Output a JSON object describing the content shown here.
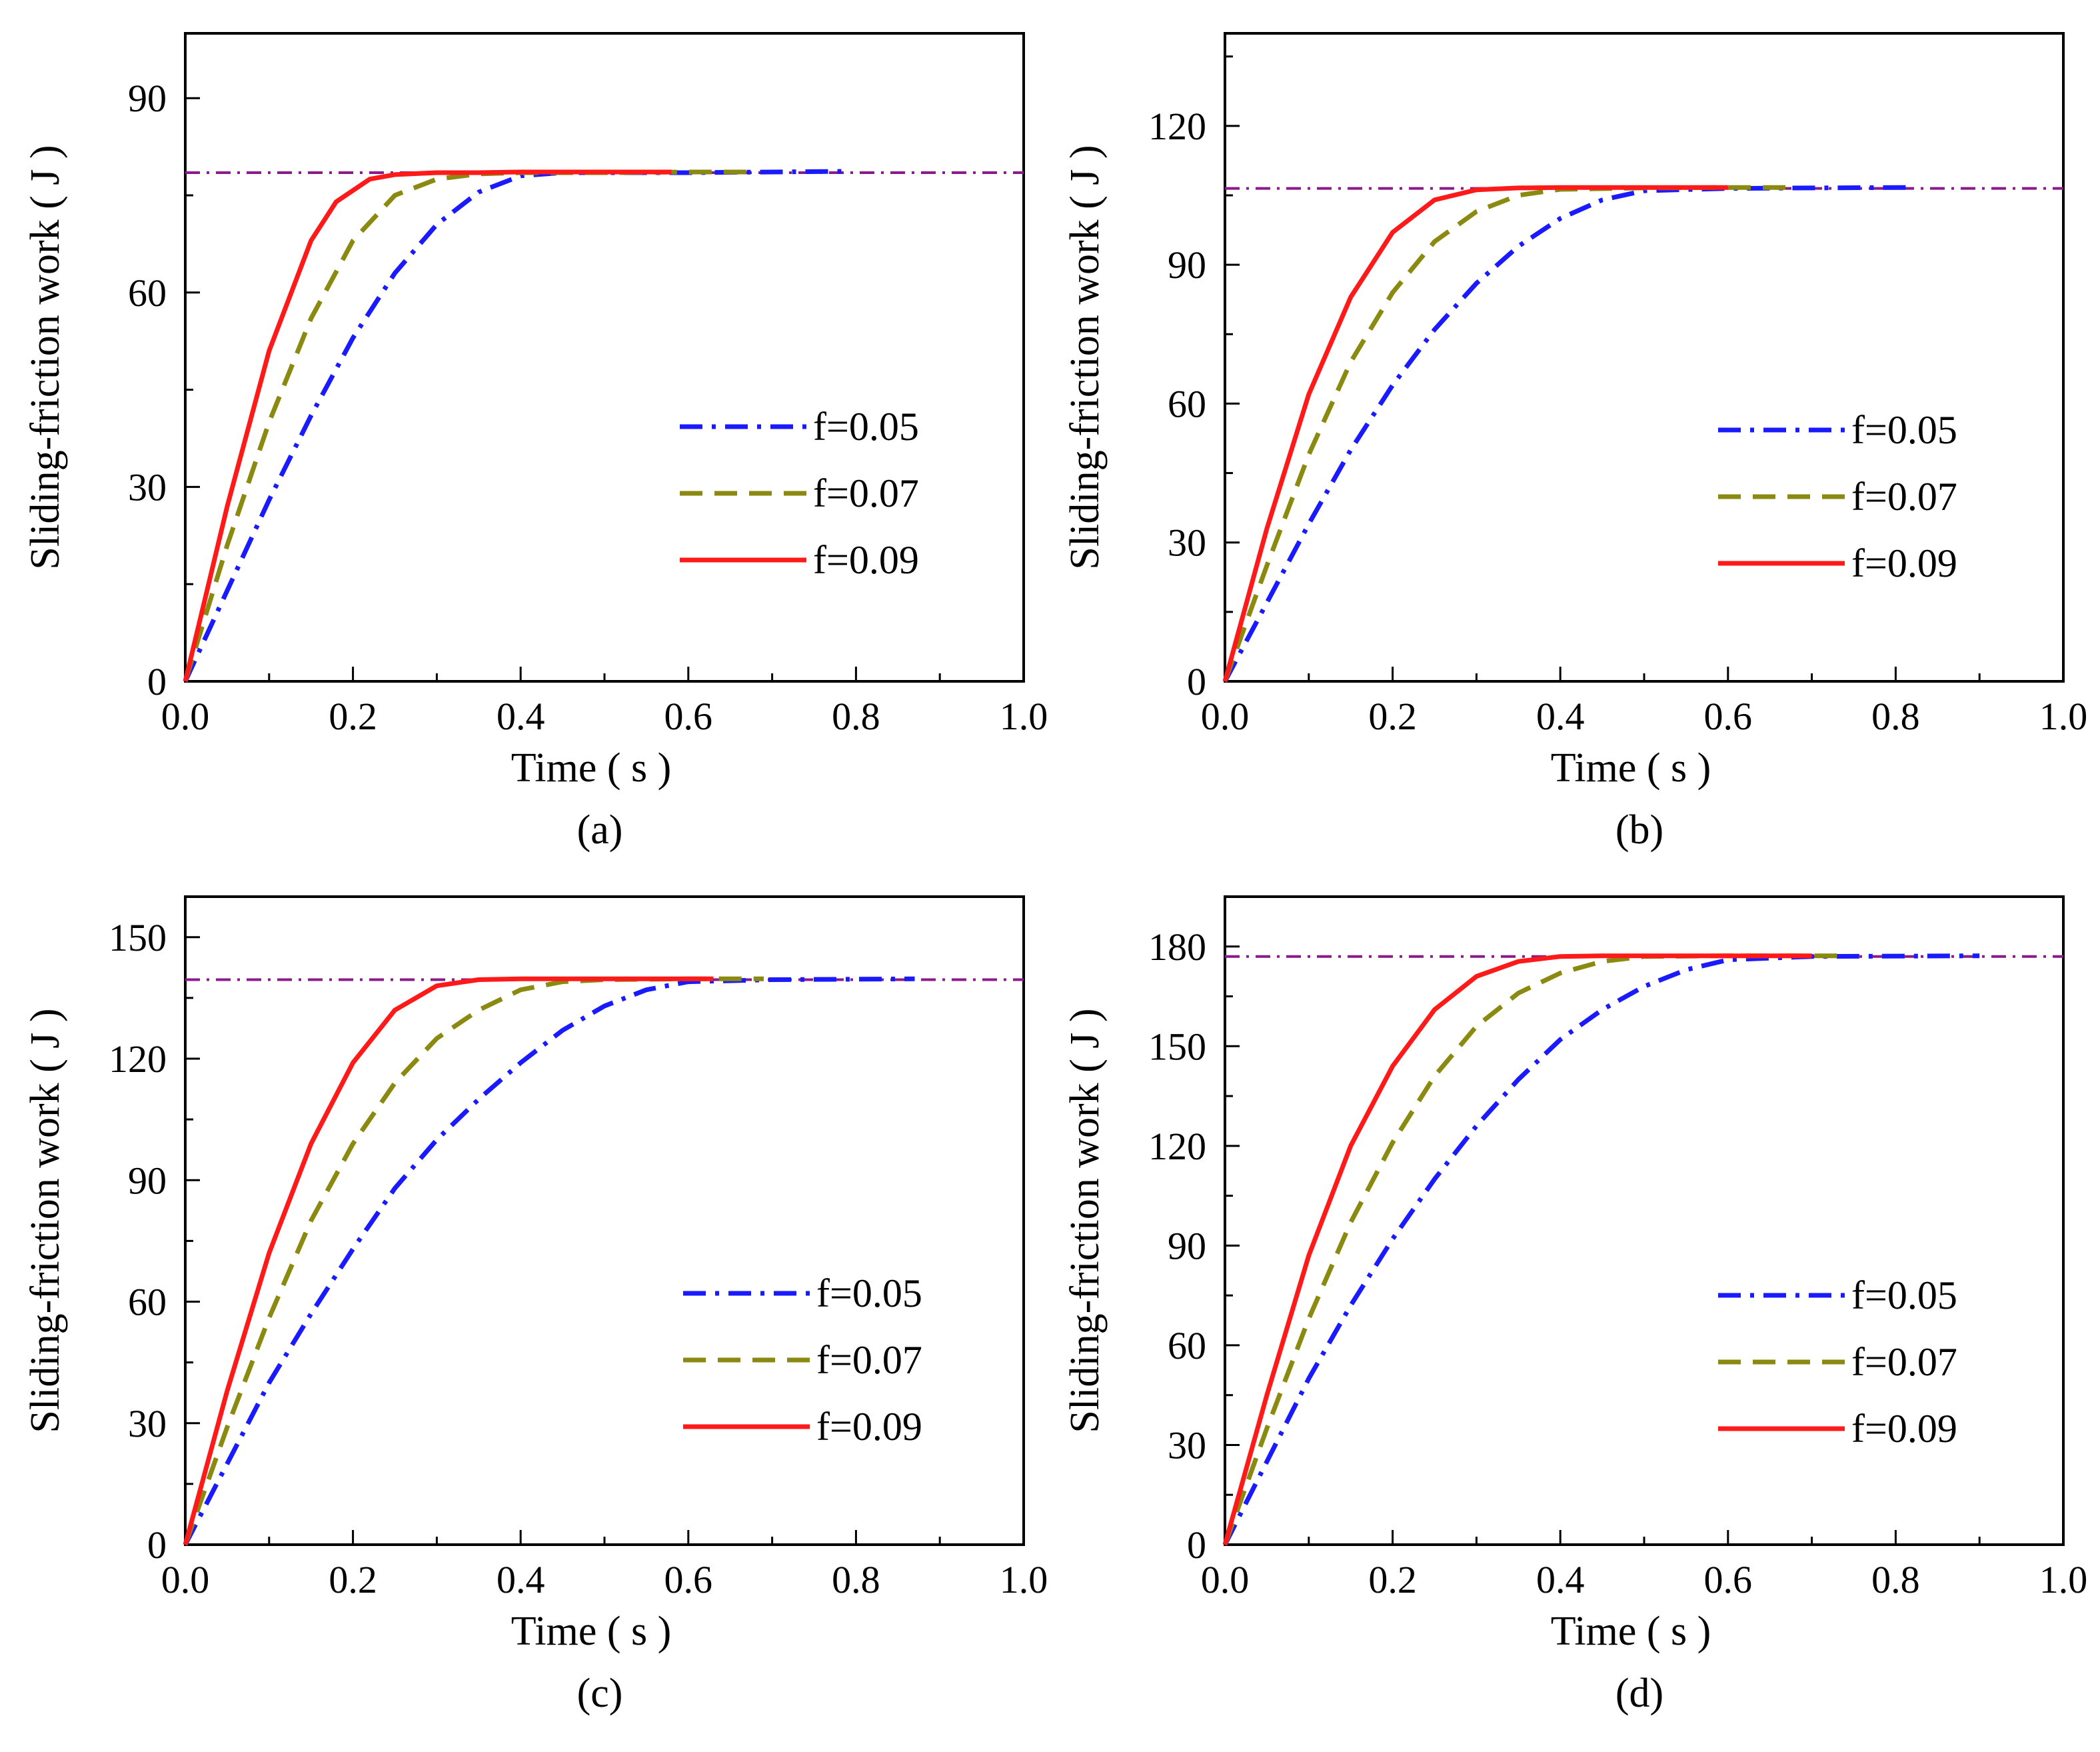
{
  "chart_data": [
    {
      "type": "line",
      "panel_label": "(a)",
      "xlabel": "Time ( s )",
      "ylabel": "Sliding-friction work ( J )",
      "xlim": [
        0,
        1.0
      ],
      "ylim": [
        0,
        100
      ],
      "xticks": [
        "0.0",
        "0.2",
        "0.4",
        "0.6",
        "0.8",
        "1.0"
      ],
      "yticks": [
        "0",
        "30",
        "60",
        "90"
      ],
      "reference_line": 78.5,
      "legend": [
        "f=0.05",
        "f=0.07",
        "f=0.09"
      ],
      "series": [
        {
          "name": "f=0.05",
          "x": [
            0,
            0.05,
            0.1,
            0.15,
            0.2,
            0.25,
            0.3,
            0.35,
            0.4,
            0.45,
            0.5,
            0.6,
            0.7,
            0.79
          ],
          "y": [
            0,
            14,
            28,
            41,
            53,
            63,
            70.5,
            75.5,
            78,
            78.5,
            78.5,
            78.5,
            78.6,
            78.7
          ]
        },
        {
          "name": "f=0.07",
          "x": [
            0,
            0.05,
            0.1,
            0.15,
            0.2,
            0.25,
            0.3,
            0.35,
            0.4,
            0.5,
            0.6,
            0.67
          ],
          "y": [
            0,
            21,
            40,
            56,
            68,
            75,
            77.5,
            78.3,
            78.5,
            78.5,
            78.6,
            78.6
          ]
        },
        {
          "name": "f=0.09",
          "x": [
            0,
            0.05,
            0.1,
            0.15,
            0.18,
            0.22,
            0.25,
            0.3,
            0.35,
            0.4,
            0.5,
            0.58
          ],
          "y": [
            0,
            27,
            51,
            68,
            74,
            77.5,
            78.2,
            78.5,
            78.5,
            78.6,
            78.6,
            78.6
          ]
        }
      ]
    },
    {
      "type": "line",
      "panel_label": "(b)",
      "xlabel": "Time ( s )",
      "ylabel": "Sliding-friction work ( J )",
      "xlim": [
        0,
        1.0
      ],
      "ylim": [
        0,
        140
      ],
      "xticks": [
        "0.0",
        "0.2",
        "0.4",
        "0.6",
        "0.8",
        "1.0"
      ],
      "yticks": [
        "0",
        "30",
        "60",
        "90",
        "120"
      ],
      "reference_line": 106.5,
      "legend": [
        "f=0.05",
        "f=0.07",
        "f=0.09"
      ],
      "series": [
        {
          "name": "f=0.05",
          "x": [
            0,
            0.05,
            0.1,
            0.15,
            0.2,
            0.25,
            0.3,
            0.35,
            0.4,
            0.45,
            0.5,
            0.6,
            0.7,
            0.82
          ],
          "y": [
            0,
            17,
            34,
            50,
            64,
            76,
            86,
            94,
            100,
            104,
            106,
            106.5,
            106.6,
            106.7
          ]
        },
        {
          "name": "f=0.07",
          "x": [
            0,
            0.05,
            0.1,
            0.15,
            0.2,
            0.25,
            0.3,
            0.35,
            0.4,
            0.5,
            0.6,
            0.68
          ],
          "y": [
            0,
            25,
            49,
            69,
            84,
            95,
            101.5,
            105,
            106.3,
            106.6,
            106.7,
            106.7
          ]
        },
        {
          "name": "f=0.09",
          "x": [
            0,
            0.05,
            0.1,
            0.15,
            0.2,
            0.25,
            0.3,
            0.35,
            0.4,
            0.5,
            0.6
          ],
          "y": [
            0,
            33,
            62,
            83,
            97,
            104,
            106.2,
            106.6,
            106.7,
            106.7,
            106.7
          ]
        }
      ]
    },
    {
      "type": "line",
      "panel_label": "(c)",
      "xlabel": "Time ( s )",
      "ylabel": "Sliding-friction work ( J )",
      "xlim": [
        0,
        1.0
      ],
      "ylim": [
        0,
        160
      ],
      "xticks": [
        "0.0",
        "0.2",
        "0.4",
        "0.6",
        "0.8",
        "1.0"
      ],
      "yticks": [
        "0",
        "30",
        "60",
        "90",
        "120",
        "150"
      ],
      "reference_line": 139.5,
      "legend": [
        "f=0.05",
        "f=0.07",
        "f=0.09"
      ],
      "series": [
        {
          "name": "f=0.05",
          "x": [
            0,
            0.05,
            0.1,
            0.15,
            0.2,
            0.25,
            0.3,
            0.35,
            0.4,
            0.45,
            0.5,
            0.55,
            0.6,
            0.7,
            0.87
          ],
          "y": [
            0,
            20,
            40,
            57,
            73,
            88,
            100,
            110,
            119,
            127,
            133,
            137,
            139,
            139.5,
            139.7
          ]
        },
        {
          "name": "f=0.07",
          "x": [
            0,
            0.05,
            0.1,
            0.15,
            0.2,
            0.25,
            0.3,
            0.35,
            0.4,
            0.45,
            0.5,
            0.6,
            0.69
          ],
          "y": [
            0,
            29,
            56,
            80,
            99,
            114,
            125,
            132,
            137,
            139,
            139.5,
            139.7,
            139.7
          ]
        },
        {
          "name": "f=0.09",
          "x": [
            0,
            0.05,
            0.1,
            0.15,
            0.2,
            0.25,
            0.3,
            0.35,
            0.4,
            0.5,
            0.63
          ],
          "y": [
            0,
            38,
            72,
            99,
            119,
            132,
            138,
            139.5,
            139.7,
            139.7,
            139.7
          ]
        }
      ]
    },
    {
      "type": "line",
      "panel_label": "(d)",
      "xlabel": "Time ( s )",
      "ylabel": "Sliding-friction work ( J )",
      "xlim": [
        0,
        1.0
      ],
      "ylim": [
        0,
        195
      ],
      "xticks": [
        "0.0",
        "0.2",
        "0.4",
        "0.6",
        "0.8",
        "1.0"
      ],
      "yticks": [
        "0",
        "30",
        "60",
        "90",
        "120",
        "150",
        "180"
      ],
      "reference_line": 177,
      "legend": [
        "f=0.05",
        "f=0.07",
        "f=0.09"
      ],
      "series": [
        {
          "name": "f=0.05",
          "x": [
            0,
            0.05,
            0.1,
            0.15,
            0.2,
            0.25,
            0.3,
            0.35,
            0.4,
            0.45,
            0.5,
            0.55,
            0.6,
            0.7,
            0.9
          ],
          "y": [
            0,
            25,
            50,
            72,
            92,
            110,
            126,
            140,
            152,
            161,
            168,
            173,
            176,
            177,
            177.2
          ]
        },
        {
          "name": "f=0.07",
          "x": [
            0,
            0.05,
            0.1,
            0.15,
            0.2,
            0.25,
            0.3,
            0.35,
            0.4,
            0.45,
            0.5,
            0.6,
            0.74
          ],
          "y": [
            0,
            35,
            68,
            97,
            121,
            141,
            156,
            166,
            172,
            175.5,
            177,
            177.2,
            177.2
          ]
        },
        {
          "name": "f=0.09",
          "x": [
            0,
            0.05,
            0.1,
            0.15,
            0.2,
            0.25,
            0.3,
            0.35,
            0.4,
            0.45,
            0.5,
            0.6,
            0.7
          ],
          "y": [
            0,
            45,
            87,
            120,
            144,
            161,
            171,
            175.5,
            177,
            177.2,
            177.2,
            177.2,
            177.2
          ]
        }
      ]
    }
  ],
  "styles": {
    "colors": {
      "f=0.05": "#1a1aff",
      "f=0.07": "#8a8a10",
      "f=0.09": "#ff1a1a",
      "reference": "#8b1a8b"
    },
    "dash": {
      "f=0.05": "34 14 6 14",
      "f=0.07": "34 18",
      "f=0.09": "",
      "reference": "22 10 4 10"
    }
  }
}
